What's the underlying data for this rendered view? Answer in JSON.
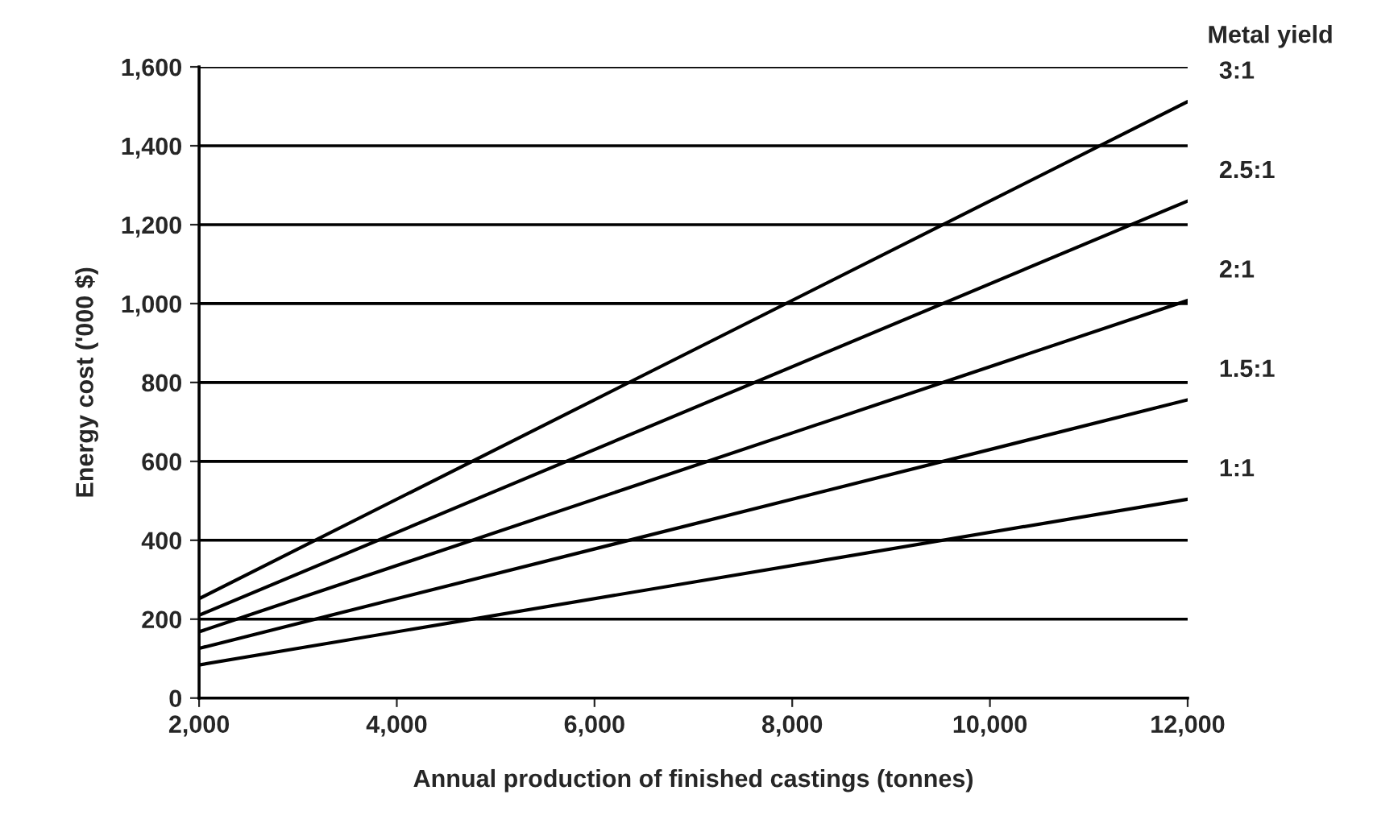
{
  "chart_data": {
    "type": "line",
    "xlabel": "Annual production of finished castings (tonnes)",
    "ylabel": "Energy cost ('000 $)",
    "legend_title": "Metal yield",
    "x": [
      2000,
      12000
    ],
    "series": [
      {
        "name": "3:1",
        "color": "#000000",
        "values": [
          252,
          1512
        ]
      },
      {
        "name": "2.5:1",
        "color": "#000000",
        "values": [
          210,
          1260
        ]
      },
      {
        "name": "2:1",
        "color": "#000000",
        "values": [
          168,
          1008
        ]
      },
      {
        "name": "1.5:1",
        "color": "#000000",
        "values": [
          126,
          756
        ]
      },
      {
        "name": "1:1",
        "color": "#000000",
        "values": [
          84,
          504
        ]
      }
    ],
    "xlim": [
      2000,
      12000
    ],
    "xticks": [
      {
        "value": 2000,
        "label": "2,000"
      },
      {
        "value": 4000,
        "label": "4,000"
      },
      {
        "value": 6000,
        "label": "6,000"
      },
      {
        "value": 8000,
        "label": "8,000"
      },
      {
        "value": 10000,
        "label": "10,000"
      },
      {
        "value": 12000,
        "label": "12,000"
      }
    ],
    "ylim": [
      0,
      1600
    ],
    "yticks": [
      0,
      200,
      400,
      600,
      800,
      {
        "value": 1000,
        "label": "1,000"
      },
      {
        "value": 1200,
        "label": "1,200"
      },
      {
        "value": 1400,
        "label": "1,400"
      },
      {
        "value": 1600,
        "label": "1,600"
      }
    ],
    "grid": "y",
    "line_style": "solid",
    "marker": "none"
  }
}
